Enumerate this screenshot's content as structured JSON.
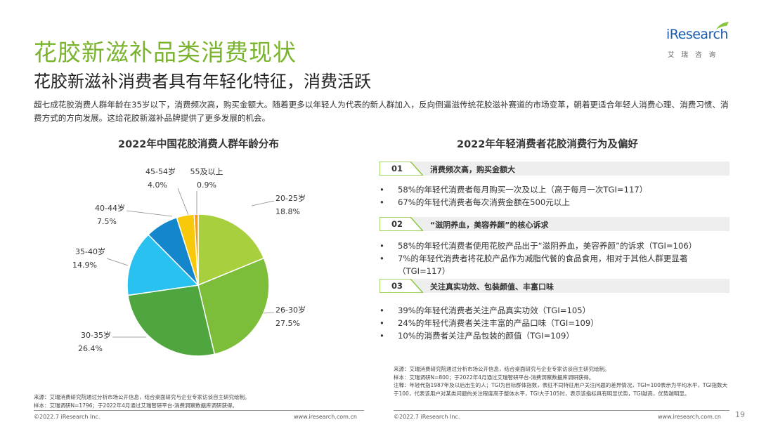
{
  "header": {
    "title": "花胶新滋补品类消费现状",
    "subtitle": "花胶新滋补消费者具有年轻化特征，消费活跃",
    "intro": "超七成花胶消费人群年龄在35岁以下，消费频次高，购买金额大。随着更多以年轻人为代表的新人群加入，反向倒逼滋传统花胶滋补赛道的市场变革，朝着更适合年轻人消费心理、消费习惯、消费方式的方向发展。这给花胶新滋补品牌提供了更多发展的机会。"
  },
  "logo": {
    "brand_i": "i",
    "brand_rest": "Research",
    "sub": "艾瑞咨询",
    "color": "#1a5bb0",
    "accent": "#8cc63f"
  },
  "chart_data": {
    "type": "pie",
    "title": "2022年中国花胶消费人群年龄分布",
    "start_angle_deg": 0,
    "slices": [
      {
        "label": "20-25岁",
        "value": 18.8,
        "display": "18.8%",
        "color": "#a8cf3e"
      },
      {
        "label": "26-30岁",
        "value": 27.5,
        "display": "27.5%",
        "color": "#7cbd3a"
      },
      {
        "label": "30-35岁",
        "value": 26.4,
        "display": "26.4%",
        "color": "#4fa63f"
      },
      {
        "label": "35-40岁",
        "value": 14.9,
        "display": "14.9%",
        "color": "#28c1f0"
      },
      {
        "label": "40-44岁",
        "value": 7.5,
        "display": "7.5%",
        "color": "#1486cc"
      },
      {
        "label": "45-54岁",
        "value": 4.0,
        "display": "4.0%",
        "color": "#f8c80a"
      },
      {
        "label": "55及以上",
        "value": 0.9,
        "display": "0.9%",
        "color": "#f39a1e"
      }
    ]
  },
  "right": {
    "title": "2022年年轻消费者花胶消费行为及偏好",
    "sections": [
      {
        "num": "01",
        "heading": "消费频次高，购买金额大",
        "bullets": [
          "58%的年轻代消费者每月购买一次及以上（高于每月一次TGI=117）",
          "67%的年轻代消费者每次消费金额在500元以上"
        ]
      },
      {
        "num": "02",
        "heading": "“滋阴养血，美容养颜”的核心诉求",
        "bullets": [
          "58%的年轻代消费者使用花胶产品出于“滋阴养血，美容养颜”的诉求（TGI=106）",
          "7%的年轻代消费者将花胶产品作为减脂代餐的食品食用，相对于其他人群更显著（TGI=117）"
        ]
      },
      {
        "num": "03",
        "heading": "关注真实功效、包装颜值、丰富口味",
        "bullets": [
          "39%的年轻代消费者关注产品真实功效（TGI=105）",
          "24%的年轻代消费者关注丰富的产品口味（TGI=109）",
          "10%的消费者关注产品包装的颜值（TGI=109）"
        ]
      }
    ]
  },
  "source_left": [
    "来源：艾瑞消费研究院通过分析市场公开信息，结合桌面研究与企业专家访谈自主研究绘制。",
    "样本：艾瑞调研N=1796；于2022年4月通过艾瑞智研平台-消费洞察数据库调研获得。"
  ],
  "source_right": [
    "来源：艾瑞消费研究院通过分析市场公开信息，结合桌面研究与企业专家访谈自主研究绘制。",
    "样本：艾瑞调研N=800；于2022年4月通过艾瑞智研平台-消费洞察数据库调研获得。",
    "注释：年轻代指1987年及以后出生的人；TGI为目标群体指数，表征不同特征用户关注问题的差异情况，TGI=100表示为平均水平，TGI指数大于100，代表该用户对某类问题的关注程度高于整体水平，TGI大于105时，表示该指标具有明显优势，TGI越高，优势越明显。"
  ],
  "footer": {
    "copyright": "©2022.7 iResearch Inc.",
    "site": "www.iresearch.com.cn",
    "page": "19"
  }
}
